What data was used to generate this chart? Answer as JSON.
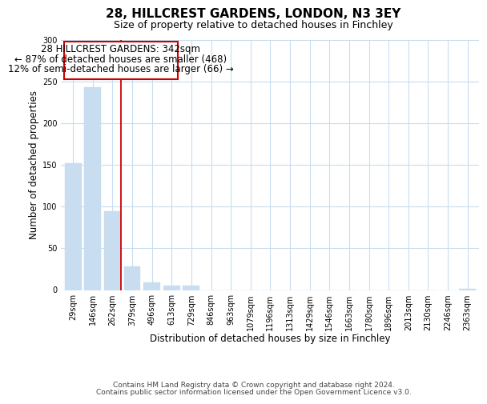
{
  "title": "28, HILLCREST GARDENS, LONDON, N3 3EY",
  "subtitle": "Size of property relative to detached houses in Finchley",
  "xlabel": "Distribution of detached houses by size in Finchley",
  "ylabel": "Number of detached properties",
  "bar_labels": [
    "29sqm",
    "146sqm",
    "262sqm",
    "379sqm",
    "496sqm",
    "613sqm",
    "729sqm",
    "846sqm",
    "963sqm",
    "1079sqm",
    "1196sqm",
    "1313sqm",
    "1429sqm",
    "1546sqm",
    "1663sqm",
    "1780sqm",
    "1896sqm",
    "2013sqm",
    "2130sqm",
    "2246sqm",
    "2363sqm"
  ],
  "bar_values": [
    152,
    243,
    95,
    28,
    9,
    5,
    5,
    0,
    0,
    0,
    0,
    0,
    0,
    0,
    0,
    0,
    0,
    0,
    0,
    0,
    1
  ],
  "bar_color": "#c8ddf0",
  "property_line_x": 2.42,
  "property_line_color": "#cc0000",
  "annotation_line1": "28 HILLCREST GARDENS: 342sqm",
  "annotation_line2": "← 87% of detached houses are smaller (468)",
  "annotation_line3": "12% of semi-detached houses are larger (66) →",
  "ylim": [
    0,
    300
  ],
  "yticks": [
    0,
    50,
    100,
    150,
    200,
    250,
    300
  ],
  "footer_line1": "Contains HM Land Registry data © Crown copyright and database right 2024.",
  "footer_line2": "Contains public sector information licensed under the Open Government Licence v3.0.",
  "background_color": "#ffffff",
  "grid_color": "#c8ddf0",
  "title_fontsize": 11,
  "subtitle_fontsize": 9,
  "axis_label_fontsize": 8.5,
  "tick_fontsize": 7,
  "annotation_fontsize": 8.5,
  "footer_fontsize": 6.5
}
